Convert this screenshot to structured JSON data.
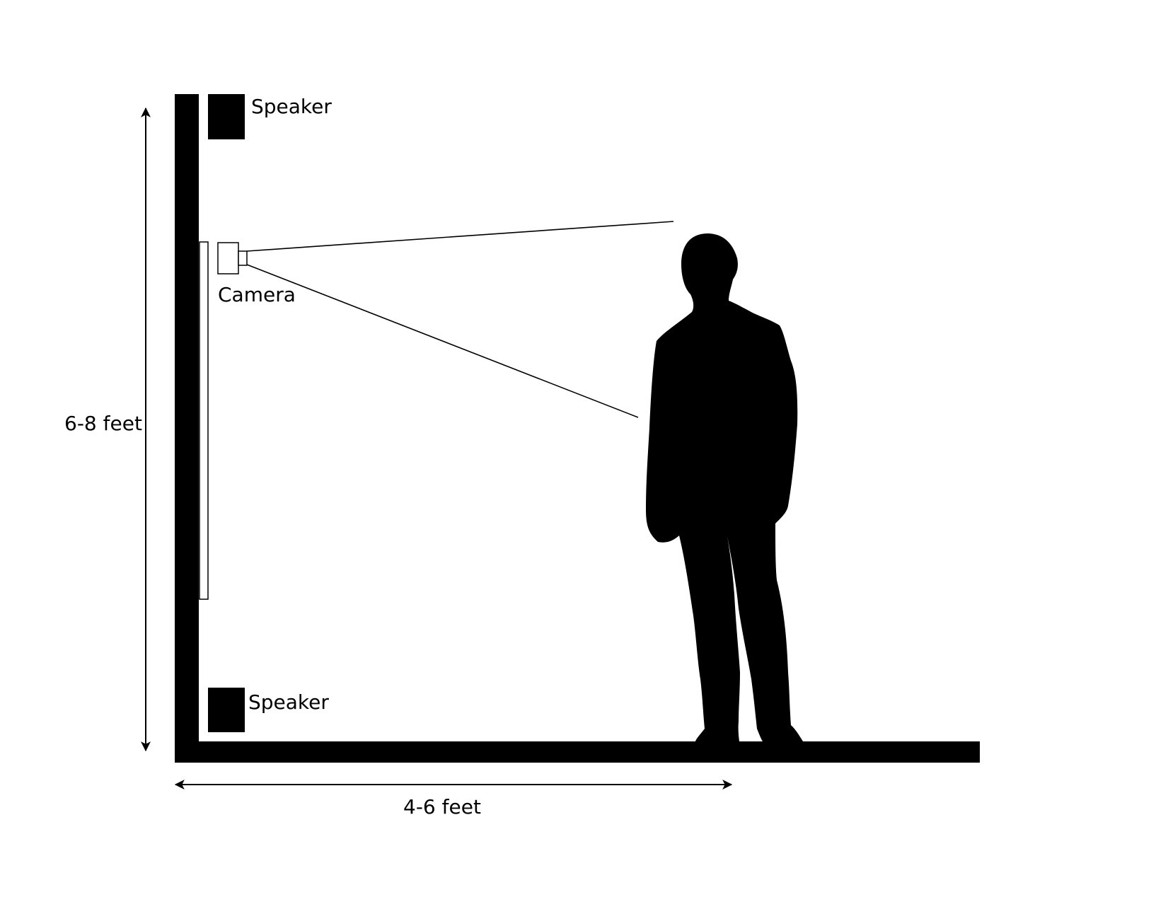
{
  "labels": {
    "speaker_top": "Speaker",
    "speaker_bottom": "Speaker",
    "camera": "Camera",
    "height_dimension": "6-8 feet",
    "distance_dimension": "4-6 feet"
  },
  "colors": {
    "ink": "#000000",
    "background": "#ffffff"
  }
}
